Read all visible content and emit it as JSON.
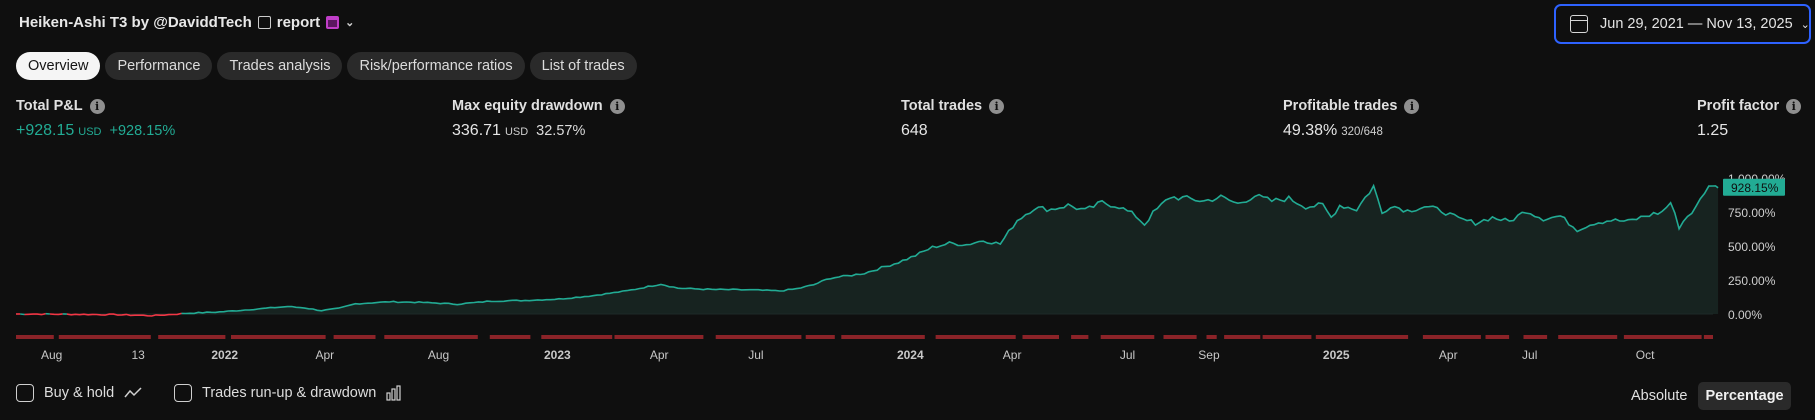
{
  "header": {
    "title": "Heiken-Ashi T3 by @DaviddTech",
    "report_label": "report"
  },
  "date_range": {
    "label": "Jun 29, 2021 — Nov 13, 2025"
  },
  "tabs": [
    {
      "label": "Overview",
      "active": true
    },
    {
      "label": "Performance",
      "active": false
    },
    {
      "label": "Trades analysis",
      "active": false
    },
    {
      "label": "Risk/performance ratios",
      "active": false
    },
    {
      "label": "List of trades",
      "active": false
    }
  ],
  "metrics": {
    "total_pnl": {
      "label": "Total P&L",
      "value": "+928.15",
      "unit": "USD",
      "sub": "+928.15%"
    },
    "max_drawdown": {
      "label": "Max equity drawdown",
      "value": "336.71",
      "unit": "USD",
      "sub": "32.57%"
    },
    "total_trades": {
      "label": "Total trades",
      "value": "648"
    },
    "profitable_trades": {
      "label": "Profitable trades",
      "value": "49.38%",
      "frac": "320/648"
    },
    "profit_factor": {
      "label": "Profit factor",
      "value": "1.25"
    }
  },
  "chart_data": {
    "type": "area",
    "series": [
      {
        "values": [
          [
            0,
            0
          ],
          [
            0.02,
            -1
          ],
          [
            0.04,
            -3
          ],
          [
            0.06,
            -5
          ],
          [
            0.08,
            -12
          ],
          [
            0.09,
            -5
          ],
          [
            0.1,
            5
          ],
          [
            0.12,
            15
          ],
          [
            0.14,
            35
          ],
          [
            0.16,
            55
          ],
          [
            0.17,
            45
          ],
          [
            0.18,
            25
          ],
          [
            0.19,
            40
          ],
          [
            0.2,
            75
          ],
          [
            0.22,
            90
          ],
          [
            0.24,
            85
          ],
          [
            0.26,
            72
          ],
          [
            0.28,
            95
          ],
          [
            0.3,
            100
          ],
          [
            0.32,
            110
          ],
          [
            0.34,
            135
          ],
          [
            0.36,
            170
          ],
          [
            0.38,
            220
          ],
          [
            0.39,
            190
          ],
          [
            0.41,
            180
          ],
          [
            0.43,
            178
          ],
          [
            0.45,
            170
          ],
          [
            0.46,
            185
          ],
          [
            0.47,
            215
          ],
          [
            0.48,
            265
          ],
          [
            0.49,
            280
          ],
          [
            0.5,
            300
          ],
          [
            0.51,
            340
          ],
          [
            0.52,
            380
          ],
          [
            0.53,
            430
          ],
          [
            0.54,
            490
          ],
          [
            0.55,
            520
          ],
          [
            0.56,
            510
          ],
          [
            0.57,
            540
          ],
          [
            0.58,
            515
          ],
          [
            0.59,
            690
          ],
          [
            0.6,
            780
          ],
          [
            0.61,
            770
          ],
          [
            0.62,
            800
          ],
          [
            0.63,
            760
          ],
          [
            0.64,
            820
          ],
          [
            0.65,
            790
          ],
          [
            0.66,
            720
          ],
          [
            0.665,
            660
          ],
          [
            0.67,
            740
          ],
          [
            0.68,
            860
          ],
          [
            0.69,
            850
          ],
          [
            0.7,
            830
          ],
          [
            0.71,
            860
          ],
          [
            0.72,
            810
          ],
          [
            0.73,
            870
          ],
          [
            0.74,
            830
          ],
          [
            0.75,
            850
          ],
          [
            0.76,
            790
          ],
          [
            0.77,
            800
          ],
          [
            0.775,
            710
          ],
          [
            0.78,
            800
          ],
          [
            0.79,
            770
          ],
          [
            0.8,
            940
          ],
          [
            0.805,
            740
          ],
          [
            0.81,
            800
          ],
          [
            0.82,
            760
          ],
          [
            0.83,
            790
          ],
          [
            0.84,
            760
          ],
          [
            0.85,
            700
          ],
          [
            0.86,
            670
          ],
          [
            0.87,
            710
          ],
          [
            0.88,
            680
          ],
          [
            0.89,
            760
          ],
          [
            0.9,
            700
          ],
          [
            0.91,
            720
          ],
          [
            0.92,
            620
          ],
          [
            0.93,
            670
          ],
          [
            0.94,
            690
          ],
          [
            0.95,
            680
          ],
          [
            0.96,
            720
          ],
          [
            0.97,
            750
          ],
          [
            0.975,
            820
          ],
          [
            0.98,
            640
          ],
          [
            0.985,
            720
          ],
          [
            0.99,
            780
          ],
          [
            0.995,
            900
          ],
          [
            1.0,
            960
          ],
          [
            1.003,
            928
          ]
        ]
      }
    ],
    "ylim": [
      -30,
      1000
    ],
    "y_ticks": [
      {
        "value": 0,
        "label": "0.00%"
      },
      {
        "value": 250,
        "label": "250.00%"
      },
      {
        "value": 500,
        "label": "500.00%"
      },
      {
        "value": 750,
        "label": "750.00%"
      },
      {
        "value": 1000,
        "label": "1,000.00%"
      }
    ],
    "x_ticks": [
      {
        "label": "Aug",
        "bold": false,
        "pos": 0.021
      },
      {
        "label": "13",
        "bold": false,
        "pos": 0.072
      },
      {
        "label": "2022",
        "bold": true,
        "pos": 0.123
      },
      {
        "label": "Apr",
        "bold": false,
        "pos": 0.182
      },
      {
        "label": "Aug",
        "bold": false,
        "pos": 0.249
      },
      {
        "label": "2023",
        "bold": true,
        "pos": 0.319
      },
      {
        "label": "Apr",
        "bold": false,
        "pos": 0.379
      },
      {
        "label": "Jul",
        "bold": false,
        "pos": 0.436
      },
      {
        "label": "2024",
        "bold": true,
        "pos": 0.527
      },
      {
        "label": "Apr",
        "bold": false,
        "pos": 0.587
      },
      {
        "label": "Jul",
        "bold": false,
        "pos": 0.655
      },
      {
        "label": "Sep",
        "bold": false,
        "pos": 0.703
      },
      {
        "label": "2025",
        "bold": true,
        "pos": 0.778
      },
      {
        "label": "Apr",
        "bold": false,
        "pos": 0.844
      },
      {
        "label": "Jul",
        "bold": false,
        "pos": 0.892
      },
      {
        "label": "Oct",
        "bold": false,
        "pos": 0.96
      }
    ],
    "last_value_label": "928.15%",
    "grid": false,
    "colors": {
      "line": "#22ab94",
      "negative": "#f23645",
      "area": "#172320",
      "drawdown": "#8b2328"
    }
  },
  "footer": {
    "buy_hold": "Buy & hold",
    "runup_drawdown": "Trades run-up & drawdown",
    "absolute": "Absolute",
    "percentage": "Percentage"
  }
}
